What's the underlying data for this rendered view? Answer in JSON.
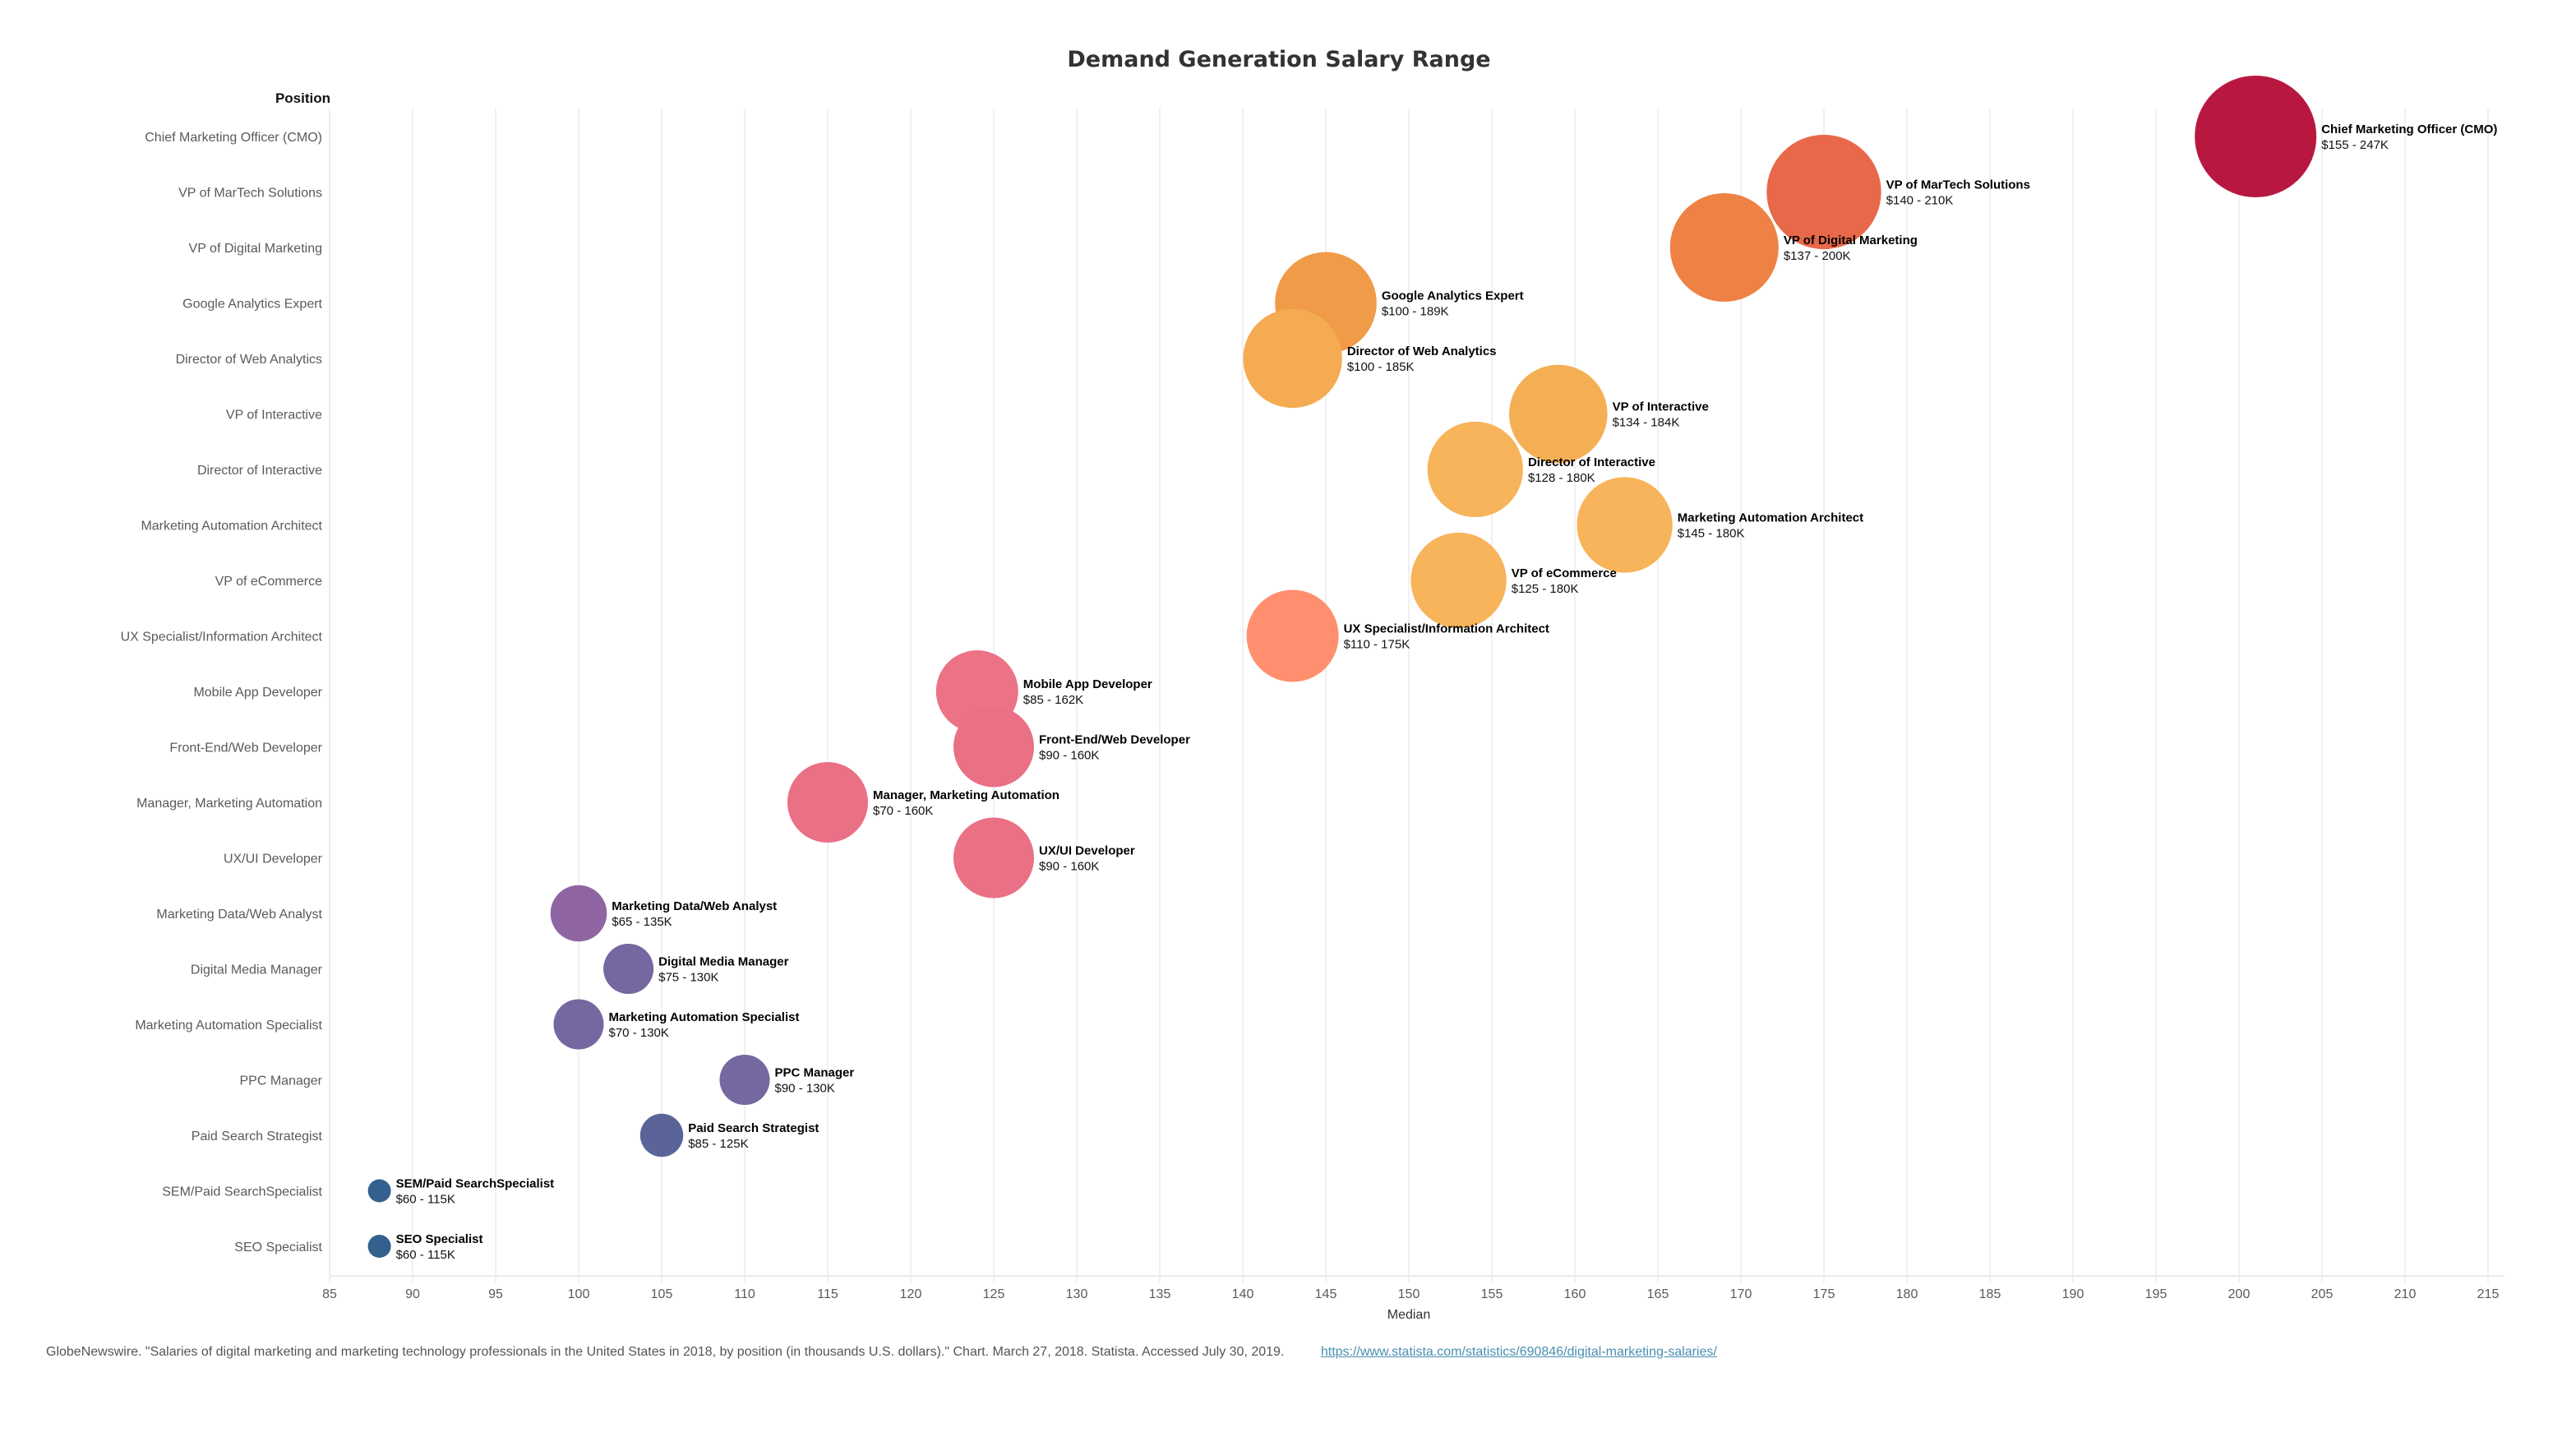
{
  "chart_data": {
    "type": "scatter",
    "title": "Demand Generation Salary Range",
    "ylabel": "Position",
    "xlabel": "Median",
    "xlim": [
      85,
      215
    ],
    "xticks": [
      85,
      90,
      95,
      100,
      105,
      110,
      115,
      120,
      125,
      130,
      135,
      140,
      145,
      150,
      155,
      160,
      165,
      170,
      175,
      180,
      185,
      190,
      195,
      200,
      205,
      210,
      215
    ],
    "grid": true,
    "size_encoding": "max salary",
    "color_encoding": "max salary",
    "points": [
      {
        "position": "Chief Marketing Officer (CMO)",
        "median": 201,
        "min": 155,
        "max": 247,
        "range_label": "$155 - 247K",
        "color": "#B8183F"
      },
      {
        "position": "VP of MarTech Solutions",
        "median": 175,
        "min": 140,
        "max": 210,
        "range_label": "$140 - 210K",
        "color": "#E8684A"
      },
      {
        "position": "VP of Digital Marketing",
        "median": 169,
        "min": 137,
        "max": 200,
        "range_label": "$137 - 200K",
        "color": "#EE8244"
      },
      {
        "position": "Google Analytics Expert",
        "median": 145,
        "min": 100,
        "max": 189,
        "range_label": "$100 - 189K",
        "color": "#F09B48"
      },
      {
        "position": "Director of Web Analytics",
        "median": 143,
        "min": 100,
        "max": 185,
        "range_label": "$100 - 185K",
        "color": "#F4AB52"
      },
      {
        "position": "VP of Interactive",
        "median": 159,
        "min": 134,
        "max": 184,
        "range_label": "$134 - 184K",
        "color": "#F4AF55"
      },
      {
        "position": "Director of Interactive",
        "median": 154,
        "min": 128,
        "max": 180,
        "range_label": "$128 - 180K",
        "color": "#F7B45B"
      },
      {
        "position": "Marketing Automation Architect",
        "median": 163,
        "min": 145,
        "max": 180,
        "range_label": "$145 - 180K",
        "color": "#F7B45B"
      },
      {
        "position": "VP of eCommerce",
        "median": 153,
        "min": 125,
        "max": 180,
        "range_label": "$125 - 180K",
        "color": "#F7B45B"
      },
      {
        "position": "UX Specialist/Information Architect",
        "median": 143,
        "min": 110,
        "max": 175,
        "range_label": "$110 - 175K",
        "color": "#FF8F6F"
      },
      {
        "position": "Mobile App Developer",
        "median": 124,
        "min": 85,
        "max": 162,
        "range_label": "$85 - 162K",
        "color": "#EC7286"
      },
      {
        "position": "Front-End/Web Developer",
        "median": 125,
        "min": 90,
        "max": 160,
        "range_label": "$90 - 160K",
        "color": "#EA7086"
      },
      {
        "position": "Manager, Marketing Automation",
        "median": 115,
        "min": 70,
        "max": 160,
        "range_label": "$70 - 160K",
        "color": "#EA7086"
      },
      {
        "position": "UX/UI Developer",
        "median": 125,
        "min": 90,
        "max": 160,
        "range_label": "$90 - 160K",
        "color": "#EA7086"
      },
      {
        "position": "Marketing Data/Web Analyst",
        "median": 100,
        "min": 65,
        "max": 135,
        "range_label": "$65 - 135K",
        "color": "#8E65A2"
      },
      {
        "position": "Digital Media Manager",
        "median": 103,
        "min": 75,
        "max": 130,
        "range_label": "$75 - 130K",
        "color": "#7567A0"
      },
      {
        "position": "Marketing Automation Specialist",
        "median": 100,
        "min": 70,
        "max": 130,
        "range_label": "$70 - 130K",
        "color": "#7567A0"
      },
      {
        "position": "PPC Manager",
        "median": 110,
        "min": 90,
        "max": 130,
        "range_label": "$90 - 130K",
        "color": "#7567A0"
      },
      {
        "position": "Paid Search Strategist",
        "median": 105,
        "min": 85,
        "max": 125,
        "range_label": "$85 - 125K",
        "color": "#5B6499"
      },
      {
        "position": "SEM/Paid SearchSpecialist",
        "median": 88,
        "min": 60,
        "max": 115,
        "range_label": "$60 - 115K",
        "color": "#33608C"
      },
      {
        "position": "SEO Specialist",
        "median": 88,
        "min": 60,
        "max": 115,
        "range_label": "$60 - 115K",
        "color": "#33608C"
      }
    ]
  },
  "footer": {
    "source_text": "GlobeNewswire. \"Salaries of digital marketing and marketing technology professionals in the United States in 2018, by position (in thousands U.S. dollars).\" Chart. March 27, 2018. Statista. Accessed July 30, 2019.",
    "link_text": "https://www.statista.com/statistics/690846/digital-marketing-salaries/"
  }
}
